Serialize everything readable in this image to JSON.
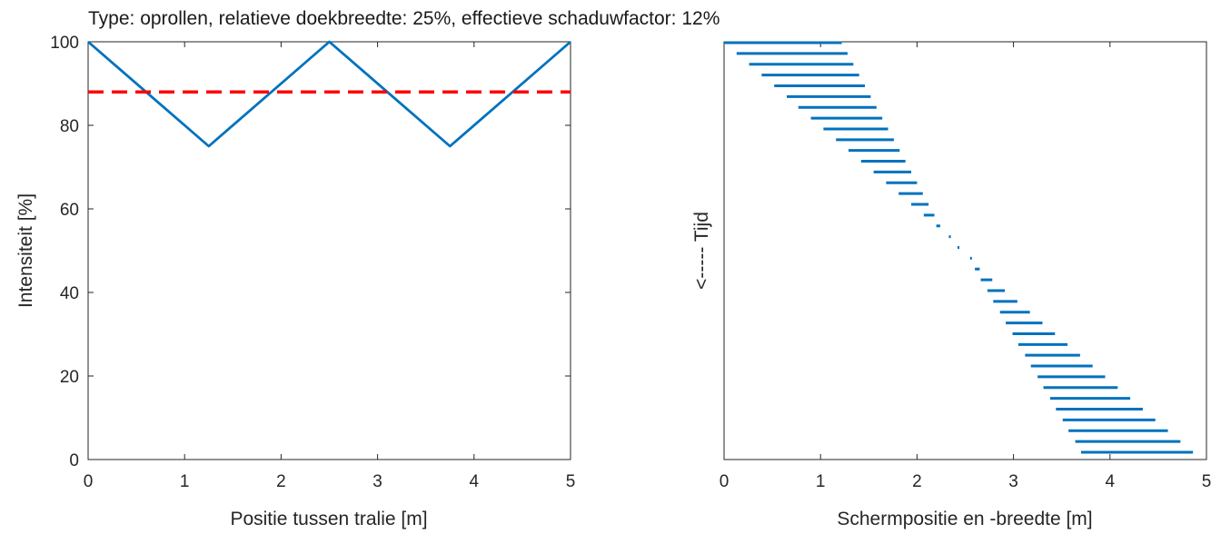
{
  "figure": {
    "title": "Type: oprollen,  relatieve doekbreedte: 25%,  effectieve schaduwfactor: 12%"
  },
  "chart_data": [
    {
      "type": "line",
      "xlabel": "Positie tussen tralie [m]",
      "ylabel": "Intensiteit [%]",
      "xlim": [
        0,
        5
      ],
      "ylim": [
        0,
        100
      ],
      "xticks": [
        "0",
        "1",
        "2",
        "3",
        "4",
        "5"
      ],
      "yticks": [
        "0",
        "20",
        "40",
        "60",
        "80",
        "100"
      ],
      "grid": false,
      "series": [
        {
          "kind": "solid",
          "color": "#0072BD",
          "x": [
            0,
            1.25,
            2.5,
            3.75,
            5
          ],
          "y": [
            100,
            75,
            100,
            75,
            100
          ]
        },
        {
          "kind": "dashed",
          "color": "#FF0000",
          "x": [
            0,
            5
          ],
          "y": [
            88,
            88
          ]
        }
      ]
    },
    {
      "type": "bar",
      "orientation": "horizontal-intervals",
      "xlabel": "Schermpositie en -breedte [m]",
      "ylabel": "<----- Tijd",
      "xlim": [
        0,
        5
      ],
      "xticks": [
        "0",
        "1",
        "2",
        "3",
        "4",
        "5"
      ],
      "yticks": [],
      "grid": false,
      "color": "#0072BD",
      "time_index_reversed": true,
      "intervals": [
        [
          0.0,
          1.22
        ],
        [
          0.13,
          1.28
        ],
        [
          0.26,
          1.34
        ],
        [
          0.39,
          1.4
        ],
        [
          0.52,
          1.46
        ],
        [
          0.65,
          1.52
        ],
        [
          0.77,
          1.58
        ],
        [
          0.9,
          1.64
        ],
        [
          1.03,
          1.7
        ],
        [
          1.16,
          1.76
        ],
        [
          1.29,
          1.82
        ],
        [
          1.42,
          1.88
        ],
        [
          1.55,
          1.94
        ],
        [
          1.68,
          2.0
        ],
        [
          1.81,
          2.06
        ],
        [
          1.94,
          2.12
        ],
        [
          2.07,
          2.18
        ],
        [
          2.2,
          2.24
        ],
        [
          2.33,
          2.35
        ],
        [
          2.42,
          2.42
        ],
        [
          2.55,
          2.55
        ],
        [
          2.6,
          2.65
        ],
        [
          2.66,
          2.78
        ],
        [
          2.73,
          2.91
        ],
        [
          2.79,
          3.04
        ],
        [
          2.86,
          3.17
        ],
        [
          2.92,
          3.3
        ],
        [
          2.99,
          3.43
        ],
        [
          3.05,
          3.56
        ],
        [
          3.12,
          3.69
        ],
        [
          3.18,
          3.82
        ],
        [
          3.25,
          3.95
        ],
        [
          3.31,
          4.08
        ],
        [
          3.38,
          4.21
        ],
        [
          3.44,
          4.34
        ],
        [
          3.51,
          4.47
        ],
        [
          3.57,
          4.6
        ],
        [
          3.64,
          4.73
        ],
        [
          3.7,
          4.86
        ]
      ]
    }
  ]
}
